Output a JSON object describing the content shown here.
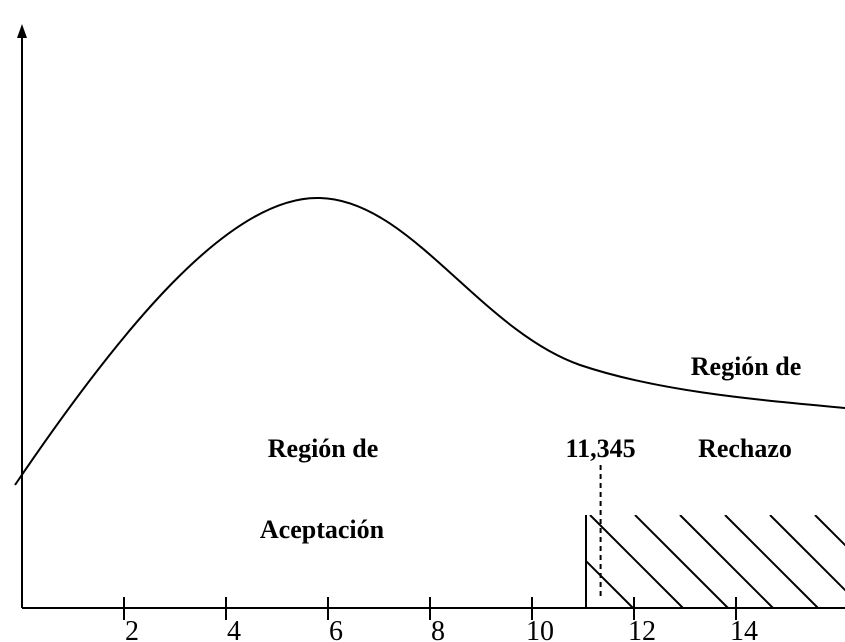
{
  "axis": {
    "xticks": [
      2,
      4,
      6,
      8,
      10,
      12,
      14
    ],
    "xlim": [
      0,
      16
    ]
  },
  "critical_value": {
    "value": 11.345,
    "label": "11,345"
  },
  "labels": {
    "acceptance": [
      "Región de",
      "Aceptación"
    ],
    "rejection": [
      "Región de",
      "Rechazo"
    ]
  }
}
